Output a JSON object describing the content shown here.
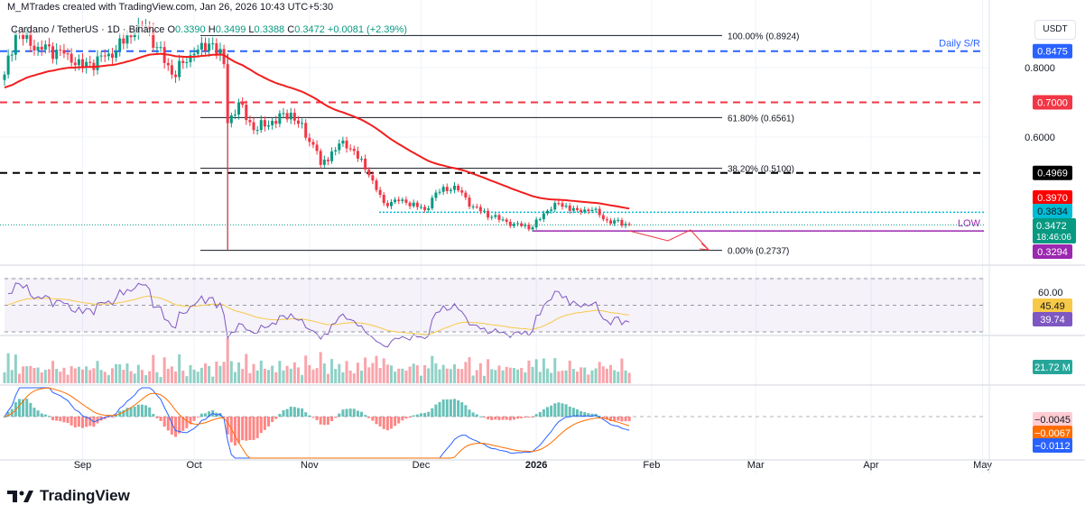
{
  "credit": "M_MTrades created with TradingView.com, Jan 26, 2026 10:43 UTC+5:30",
  "legend": {
    "symbol": "Cardano / TetherUS · 1D · Binance",
    "o_label": "O",
    "o": "0.3390",
    "h_label": "H",
    "h": "0.3499",
    "l_label": "L",
    "l": "0.3388",
    "c_label": "C",
    "c": "0.3472",
    "change": "+0.0081 (+2.39%)"
  },
  "unit": "USDT",
  "brand": "TradingView",
  "colors": {
    "up": "#089981",
    "down": "#f23645",
    "ma": "#f21e1e",
    "rsi": "#7e57c2",
    "rsi_ma": "#f7c948",
    "macd": "#2962ff",
    "signal": "#ff6d00"
  },
  "chart_data": {
    "type": "candlestick",
    "title": "Cardano / TetherUS · 1D · Binance",
    "x_ticks": [
      {
        "date": "2025-09-01",
        "label": "Sep"
      },
      {
        "date": "2025-10-01",
        "label": "Oct"
      },
      {
        "date": "2025-11-01",
        "label": "Nov"
      },
      {
        "date": "2025-12-01",
        "label": "Dec"
      },
      {
        "date": "2026-01-01",
        "label": "2026"
      },
      {
        "date": "2026-02-01",
        "label": "Feb"
      },
      {
        "date": "2026-03-01",
        "label": "Mar"
      },
      {
        "date": "2026-04-01",
        "label": "Apr"
      },
      {
        "date": "2026-05-01",
        "label": "May"
      }
    ],
    "start_date": "2025-08-11",
    "y_ticks": [
      "0.8000",
      "0.6000"
    ],
    "close_keypoints": [
      [
        "2025-08-11",
        0.78
      ],
      [
        "2025-08-14",
        0.9
      ],
      [
        "2025-08-20",
        0.86
      ],
      [
        "2025-08-28",
        0.84
      ],
      [
        "2025-09-01",
        0.8
      ],
      [
        "2025-09-08",
        0.84
      ],
      [
        "2025-09-15",
        0.9
      ],
      [
        "2025-09-18",
        0.92
      ],
      [
        "2025-09-25",
        0.78
      ],
      [
        "2025-10-01",
        0.84
      ],
      [
        "2025-10-06",
        0.87
      ],
      [
        "2025-10-09",
        0.81
      ],
      [
        "2025-10-10",
        0.64
      ],
      [
        "2025-10-13",
        0.7
      ],
      [
        "2025-10-17",
        0.62
      ],
      [
        "2025-10-27",
        0.67
      ],
      [
        "2025-11-03",
        0.56
      ],
      [
        "2025-11-04",
        0.52
      ],
      [
        "2025-11-10",
        0.59
      ],
      [
        "2025-11-13",
        0.56
      ],
      [
        "2025-11-17",
        0.49
      ],
      [
        "2025-11-21",
        0.41
      ],
      [
        "2025-11-26",
        0.42
      ],
      [
        "2025-12-02",
        0.39
      ],
      [
        "2025-12-05",
        0.44
      ],
      [
        "2025-12-10",
        0.46
      ],
      [
        "2025-12-15",
        0.4
      ],
      [
        "2025-12-20",
        0.37
      ],
      [
        "2025-12-26",
        0.35
      ],
      [
        "2025-12-31",
        0.34
      ],
      [
        "2026-01-03",
        0.38
      ],
      [
        "2026-01-06",
        0.41
      ],
      [
        "2026-01-12",
        0.39
      ],
      [
        "2026-01-16",
        0.39
      ],
      [
        "2026-01-20",
        0.36
      ],
      [
        "2026-01-26",
        0.3472
      ]
    ],
    "crash_wick_low": 0.2737,
    "fib_levels": [
      {
        "label": "100.00% (0.8924)",
        "value": 0.8924
      },
      {
        "label": "61.80% (0.6561)",
        "value": 0.6561
      },
      {
        "label": "38.20% (0.5100)",
        "value": 0.51
      },
      {
        "label": "0.00% (0.2737)",
        "value": 0.2737
      }
    ],
    "levels": [
      {
        "label": "Daily S/R",
        "tag": "0.8475",
        "value": 0.8475,
        "color": "#2962ff"
      },
      {
        "tag": "0.7000",
        "value": 0.7,
        "color": "#f23645"
      },
      {
        "tag": "0.4969",
        "value": 0.4969,
        "color": "#000000"
      },
      {
        "tag": "0.3834",
        "value": 0.3834,
        "color": "#00bcd4"
      },
      {
        "label": "LOW",
        "tag": "0.3294",
        "value": 0.3294,
        "color": "#9c27b0"
      }
    ],
    "ma_value": "0.3970",
    "last_price": "0.3472",
    "countdown": "18:46:06",
    "rsi": {
      "level_tick": "60.00",
      "ma_value": "45.49",
      "value": "39.74",
      "bands": [
        30,
        70
      ]
    },
    "volume": {
      "value": "21.72 M"
    },
    "macd": {
      "histogram": "−0.0045",
      "signal": "−0.0067",
      "macd": "−0.0112"
    }
  }
}
